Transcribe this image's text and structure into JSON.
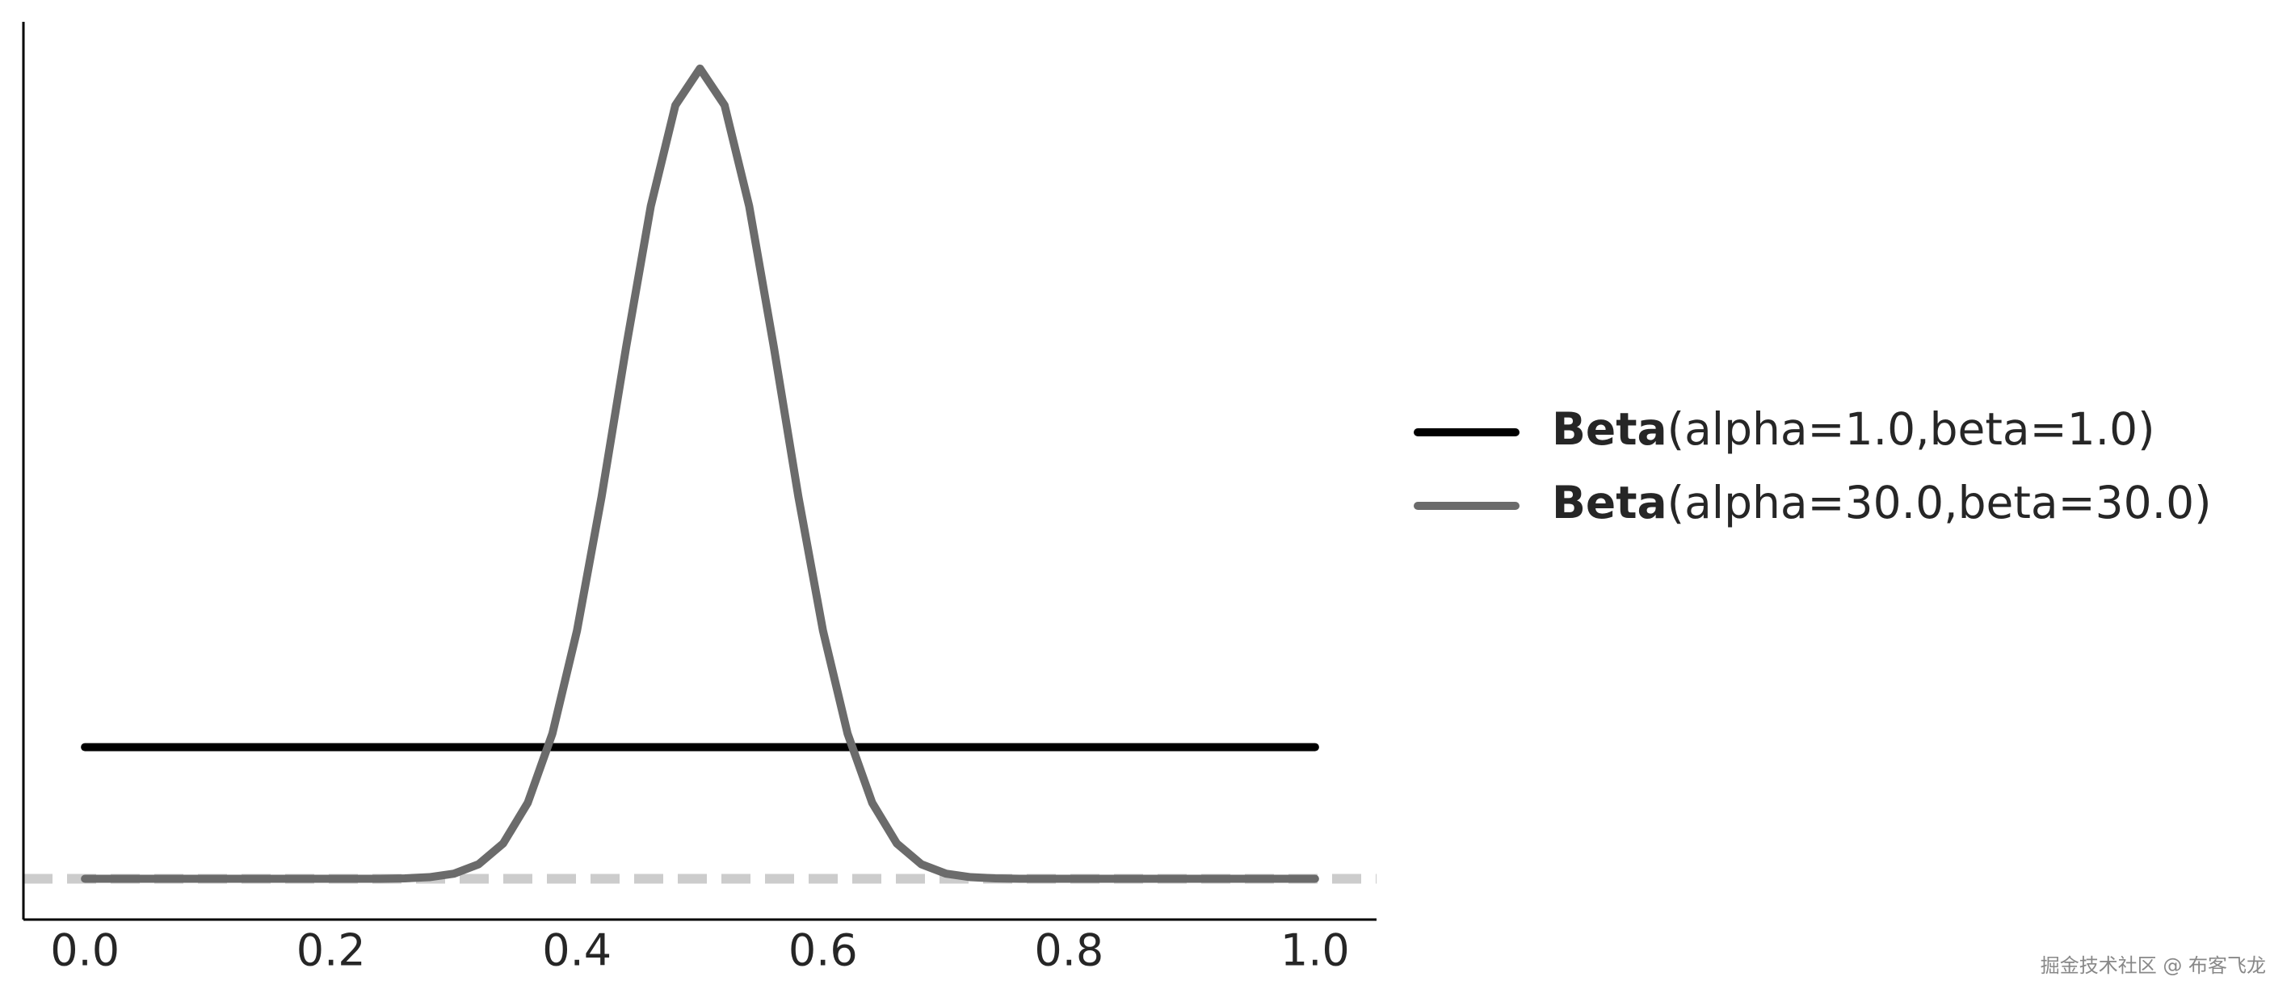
{
  "chart_data": {
    "type": "line",
    "series": [
      {
        "name": "Beta(alpha=1.0,beta=1.0)",
        "color": "#000000",
        "x": [
          0,
          1
        ],
        "values": [
          1,
          1
        ]
      },
      {
        "name": "Beta(alpha=30.0,beta=30.0)",
        "color": "#6b6b6b",
        "x": [
          0,
          0.02,
          0.04,
          0.06,
          0.08,
          0.1,
          0.12,
          0.14,
          0.16,
          0.18,
          0.2,
          0.22,
          0.24,
          0.26,
          0.28,
          0.3,
          0.32,
          0.34,
          0.36,
          0.38,
          0.4,
          0.42,
          0.44,
          0.46,
          0.48,
          0.5,
          0.52,
          0.54,
          0.56,
          0.58,
          0.6,
          0.62,
          0.64,
          0.66,
          0.68,
          0.7,
          0.72,
          0.74,
          0.76,
          0.78,
          0.8,
          0.82,
          0.84,
          0.86,
          0.88,
          0.9,
          0.92,
          0.94,
          0.96,
          0.98,
          1
        ],
        "values": [
          0,
          0,
          0,
          0,
          0,
          0,
          0,
          0,
          0,
          0,
          0,
          0,
          0,
          0.003,
          0.012,
          0.039,
          0.11,
          0.268,
          0.577,
          1.102,
          1.884,
          2.902,
          4.041,
          5.109,
          5.876,
          6.155,
          5.876,
          5.109,
          4.041,
          2.902,
          1.884,
          1.102,
          0.577,
          0.268,
          0.11,
          0.039,
          0.012,
          0.003,
          0,
          0,
          0,
          0,
          0,
          0,
          0,
          0,
          0,
          0,
          0,
          0,
          0
        ]
      }
    ],
    "xlim": [
      -0.05,
      1.05
    ],
    "ylim": [
      -0.31,
      6.51
    ],
    "xticks": [
      {
        "value": 0,
        "label": "0.0"
      },
      {
        "value": 0.2,
        "label": "0.2"
      },
      {
        "value": 0.4,
        "label": "0.4"
      },
      {
        "value": 0.6,
        "label": "0.6"
      },
      {
        "value": 0.8,
        "label": "0.8"
      },
      {
        "value": 1,
        "label": "1.0"
      }
    ],
    "reference_line": {
      "y": 0,
      "color": "#cccccc",
      "dashed": true
    },
    "legend": "right",
    "watermark": "掘金技术社区 @ 布客飞龙"
  }
}
